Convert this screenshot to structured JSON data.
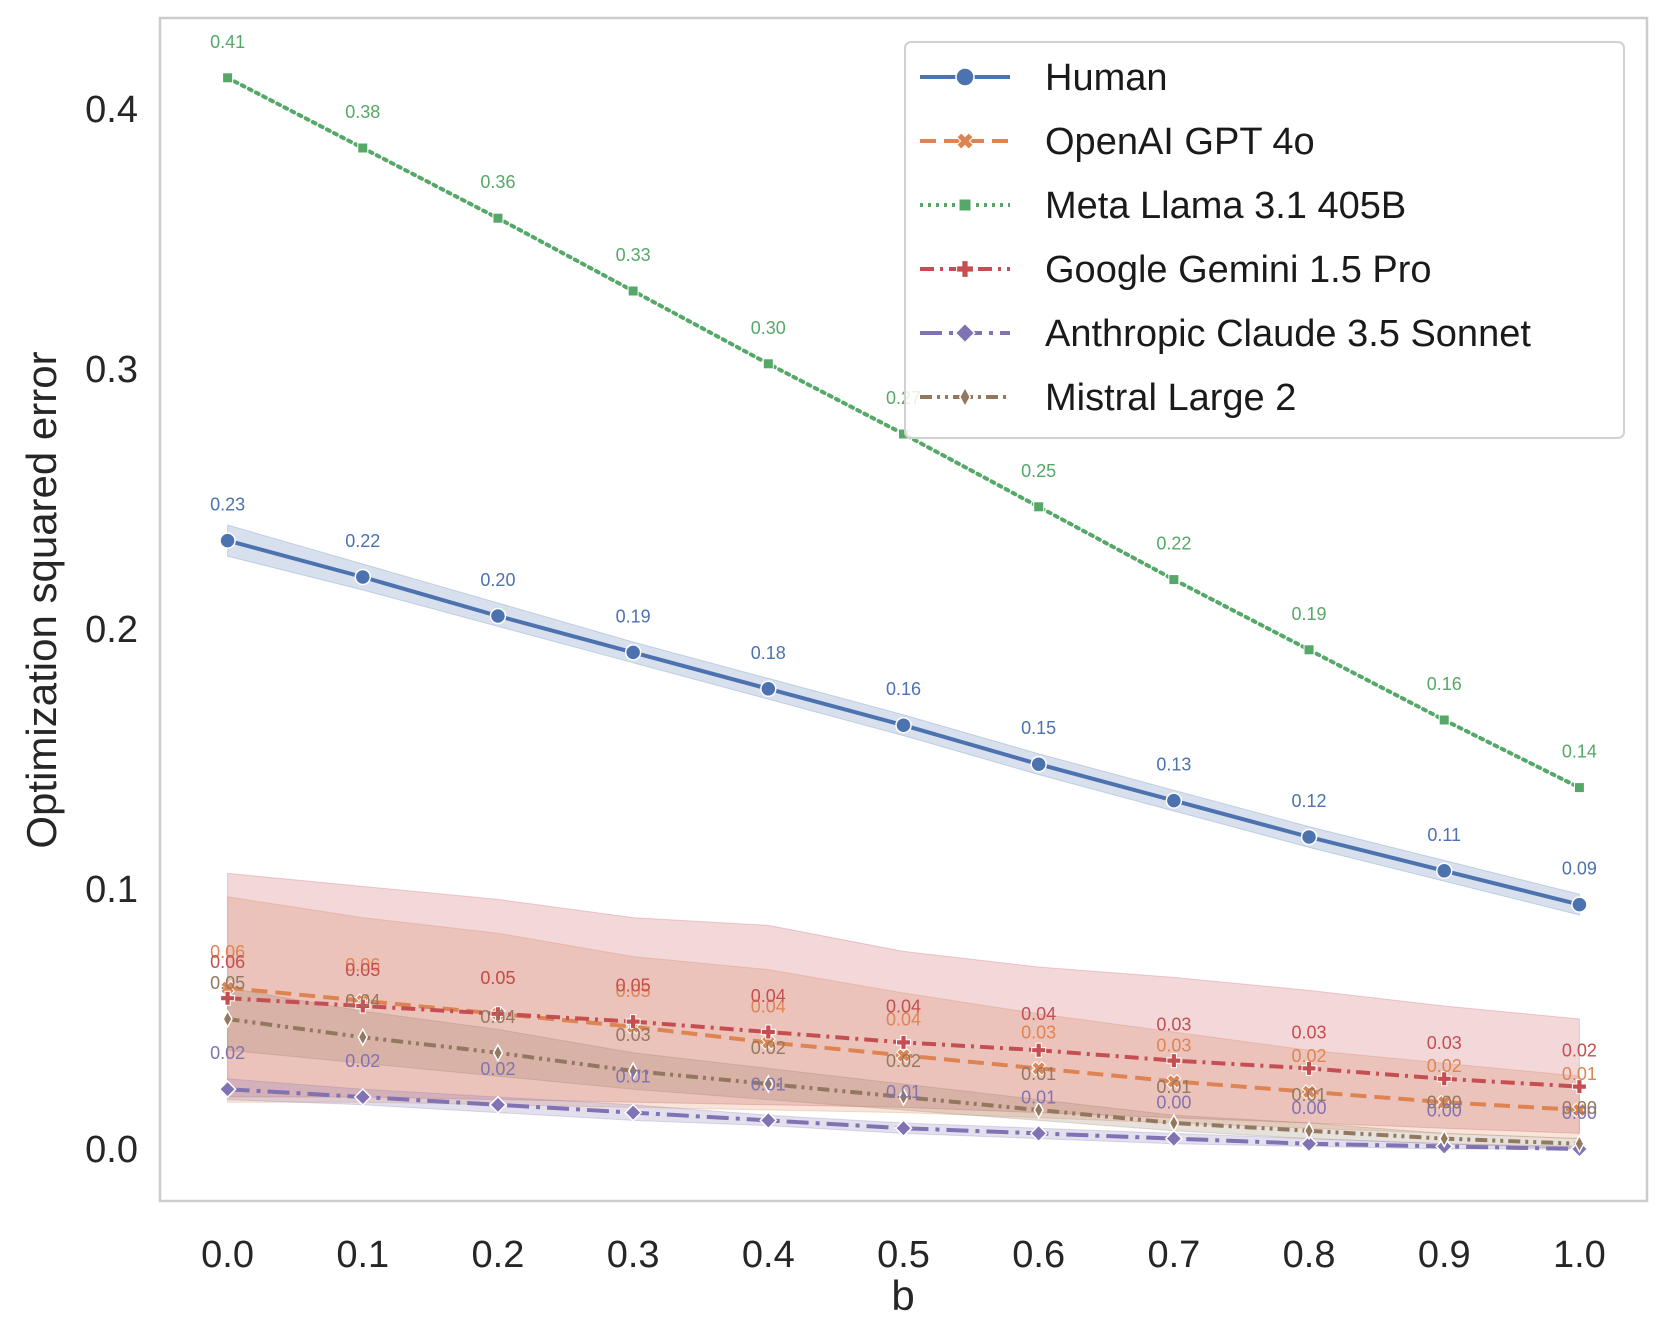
{
  "chart_data": {
    "type": "line",
    "title": "",
    "xlabel": "b",
    "ylabel": "Optimization squared error",
    "x": [
      0.0,
      0.1,
      0.2,
      0.3,
      0.4,
      0.5,
      0.6,
      0.7,
      0.8,
      0.9,
      1.0
    ],
    "x_tick_labels": [
      "0.0",
      "0.1",
      "0.2",
      "0.3",
      "0.4",
      "0.5",
      "0.6",
      "0.7",
      "0.8",
      "0.9",
      "1.0"
    ],
    "y_ticks": [
      0.0,
      0.1,
      0.2,
      0.3,
      0.4
    ],
    "y_tick_labels": [
      "0.0",
      "0.1",
      "0.2",
      "0.3",
      "0.4"
    ],
    "xlim": [
      -0.05,
      1.05
    ],
    "ylim": [
      -0.02,
      0.435
    ],
    "grid": false,
    "legend_position": "top-right",
    "series": [
      {
        "name": "Human",
        "color": "#4c72b0",
        "linestyle": "solid",
        "marker": "circle",
        "values": [
          0.234,
          0.22,
          0.205,
          0.191,
          0.177,
          0.163,
          0.148,
          0.134,
          0.12,
          0.107,
          0.094
        ],
        "labels": [
          "0.23",
          "0.22",
          "0.20",
          "0.19",
          "0.18",
          "0.16",
          "0.15",
          "0.13",
          "0.12",
          "0.11",
          "0.09"
        ],
        "band_lower": [
          0.228,
          0.215,
          0.201,
          0.187,
          0.173,
          0.159,
          0.144,
          0.13,
          0.116,
          0.103,
          0.09
        ],
        "band_upper": [
          0.24,
          0.225,
          0.21,
          0.195,
          0.181,
          0.167,
          0.152,
          0.138,
          0.124,
          0.111,
          0.098
        ]
      },
      {
        "name": "OpenAI GPT 4o",
        "color": "#dd8452",
        "linestyle": "dashed",
        "marker": "x-filled",
        "values": [
          0.062,
          0.057,
          0.052,
          0.047,
          0.041,
          0.036,
          0.031,
          0.026,
          0.022,
          0.018,
          0.015
        ],
        "labels": [
          "0.06",
          "0.06",
          "0.05",
          "0.05",
          "0.04",
          "0.04",
          "0.03",
          "0.03",
          "0.02",
          "0.02",
          "0.01"
        ],
        "band_lower": [
          0.018,
          0.018,
          0.017,
          0.016,
          0.015,
          0.014,
          0.012,
          0.01,
          0.008,
          0.006,
          0.004
        ],
        "band_upper": [
          0.097,
          0.089,
          0.083,
          0.074,
          0.069,
          0.06,
          0.052,
          0.045,
          0.038,
          0.033,
          0.028
        ]
      },
      {
        "name": "Meta Llama 3.1 405B",
        "color": "#55a868",
        "linestyle": "dotted",
        "marker": "square",
        "values": [
          0.412,
          0.385,
          0.358,
          0.33,
          0.302,
          0.275,
          0.247,
          0.219,
          0.192,
          0.165,
          0.139
        ],
        "labels": [
          "0.41",
          "0.38",
          "0.36",
          "0.33",
          "0.30",
          "0.27",
          "0.25",
          "0.22",
          "0.19",
          "0.16",
          "0.14"
        ]
      },
      {
        "name": "Google Gemini 1.5 Pro",
        "color": "#c44e52",
        "linestyle": "dashdot",
        "marker": "plus",
        "values": [
          0.058,
          0.055,
          0.052,
          0.049,
          0.045,
          0.041,
          0.038,
          0.034,
          0.031,
          0.027,
          0.024
        ],
        "labels": [
          "0.06",
          "0.05",
          "0.05",
          "0.05",
          "0.04",
          "0.04",
          "0.04",
          "0.03",
          "0.03",
          "0.03",
          "0.02"
        ],
        "band_lower": [
          0.02,
          0.02,
          0.019,
          0.018,
          0.017,
          0.016,
          0.014,
          0.012,
          0.01,
          0.008,
          0.006
        ],
        "band_upper": [
          0.106,
          0.101,
          0.096,
          0.089,
          0.086,
          0.076,
          0.07,
          0.066,
          0.061,
          0.055,
          0.05
        ]
      },
      {
        "name": "Anthropic Claude 3.5 Sonnet",
        "color": "#8172b3",
        "linestyle": "longdashdot",
        "marker": "diamond",
        "values": [
          0.023,
          0.02,
          0.017,
          0.014,
          0.011,
          0.008,
          0.006,
          0.004,
          0.002,
          0.001,
          0.0
        ],
        "labels": [
          "0.02",
          "0.02",
          "0.02",
          "0.01",
          "0.01",
          "0.01",
          "0.01",
          "0.00",
          "0.00",
          "0.00",
          "0.00"
        ],
        "band_lower": [
          0.019,
          0.017,
          0.014,
          0.011,
          0.009,
          0.006,
          0.004,
          0.002,
          0.001,
          0.0,
          0.0
        ],
        "band_upper": [
          0.027,
          0.023,
          0.02,
          0.017,
          0.013,
          0.01,
          0.008,
          0.006,
          0.004,
          0.002,
          0.001
        ]
      },
      {
        "name": "Mistral Large 2",
        "color": "#937860",
        "linestyle": "dashdotdot",
        "marker": "thin-diamond",
        "values": [
          0.05,
          0.043,
          0.037,
          0.03,
          0.025,
          0.02,
          0.015,
          0.01,
          0.007,
          0.004,
          0.002
        ],
        "labels": [
          "0.05",
          "0.04",
          "0.04",
          "0.03",
          "0.02",
          "0.02",
          "0.01",
          "0.01",
          "0.01",
          "0.00",
          "0.00"
        ],
        "band_lower": [
          0.038,
          0.033,
          0.028,
          0.023,
          0.019,
          0.015,
          0.011,
          0.007,
          0.004,
          0.002,
          0.0
        ],
        "band_upper": [
          0.062,
          0.053,
          0.046,
          0.037,
          0.031,
          0.025,
          0.019,
          0.013,
          0.01,
          0.006,
          0.004
        ]
      }
    ]
  }
}
